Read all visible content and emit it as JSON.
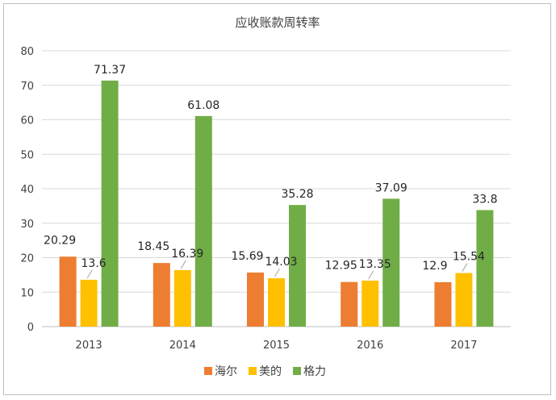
{
  "chart_data": {
    "type": "bar",
    "title": "应收账款周转率",
    "categories": [
      "2013",
      "2014",
      "2015",
      "2016",
      "2017"
    ],
    "ylim": [
      0,
      80
    ],
    "yticks": [
      0,
      10,
      20,
      30,
      40,
      50,
      60,
      70,
      80
    ],
    "grid": true,
    "legend_position": "bottom",
    "series": [
      {
        "name": "海尔",
        "color": "#ed7d31",
        "values": [
          20.29,
          18.45,
          15.69,
          12.95,
          12.9
        ]
      },
      {
        "name": "美的",
        "color": "#ffc000",
        "values": [
          13.6,
          16.39,
          14.03,
          13.35,
          15.54
        ]
      },
      {
        "name": "格力",
        "color": "#70ad47",
        "values": [
          71.37,
          61.08,
          35.28,
          37.09,
          33.8
        ]
      }
    ],
    "data_labels": [
      [
        "20.29",
        "18.45",
        "15.69",
        "12.95",
        "12.9"
      ],
      [
        "13.6",
        "16.39",
        "14.03",
        "13.35",
        "15.54"
      ],
      [
        "71.37",
        "61.08",
        "35.28",
        "37.09",
        "33.8"
      ]
    ]
  }
}
